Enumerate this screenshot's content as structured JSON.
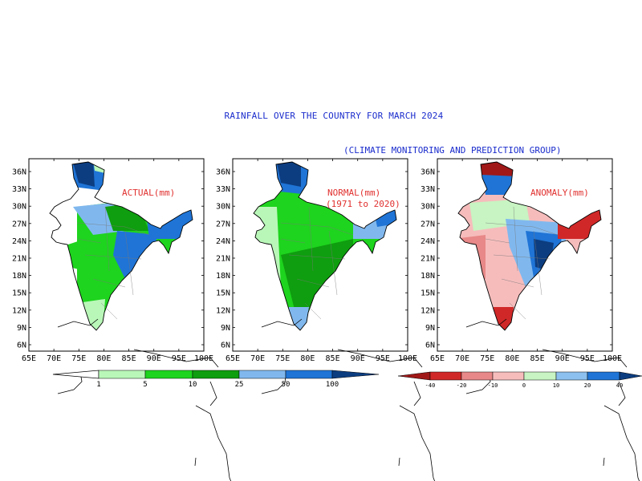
{
  "title": "RAINFALL OVER THE COUNTRY FOR MARCH 2024",
  "subtitle": "(CLIMATE MONITORING AND PREDICTION GROUP)",
  "colors": {
    "title": "#1a2ccc",
    "panel_label": "#e0302e",
    "seq_scale": [
      "#ffffff",
      "#b9f7b8",
      "#1ed41e",
      "#0f9e0f",
      "#80b8ee",
      "#1f74d6",
      "#0c3d80"
    ],
    "div_scale": [
      "#a01818",
      "#d02828",
      "#e88888",
      "#f6bcbc",
      "#c7f4c2",
      "#8cc0ee",
      "#1f74d6",
      "#0c3d80"
    ]
  },
  "axes": {
    "lon_ticks": [
      "65E",
      "70E",
      "75E",
      "80E",
      "85E",
      "90E",
      "95E",
      "100E"
    ],
    "lat_ticks": [
      "36N",
      "33N",
      "30N",
      "27N",
      "24N",
      "21N",
      "18N",
      "15N",
      "12N",
      "9N",
      "6N"
    ]
  },
  "panels": [
    {
      "id": "actual",
      "label_line1": "ACTUAL(mm)",
      "label_line2": ""
    },
    {
      "id": "normal",
      "label_line1": "NORMAL(mm)",
      "label_line2": "(1971 to 2020)"
    },
    {
      "id": "anomaly",
      "label_line1": "ANOMALY(mm)",
      "label_line2": ""
    }
  ],
  "legend_rainfall": {
    "ticks": [
      "1",
      "5",
      "10",
      "25",
      "50",
      "100"
    ]
  },
  "legend_anomaly": {
    "ticks": [
      "-40",
      "-20",
      "-10",
      "0",
      "10",
      "20",
      "40"
    ]
  }
}
